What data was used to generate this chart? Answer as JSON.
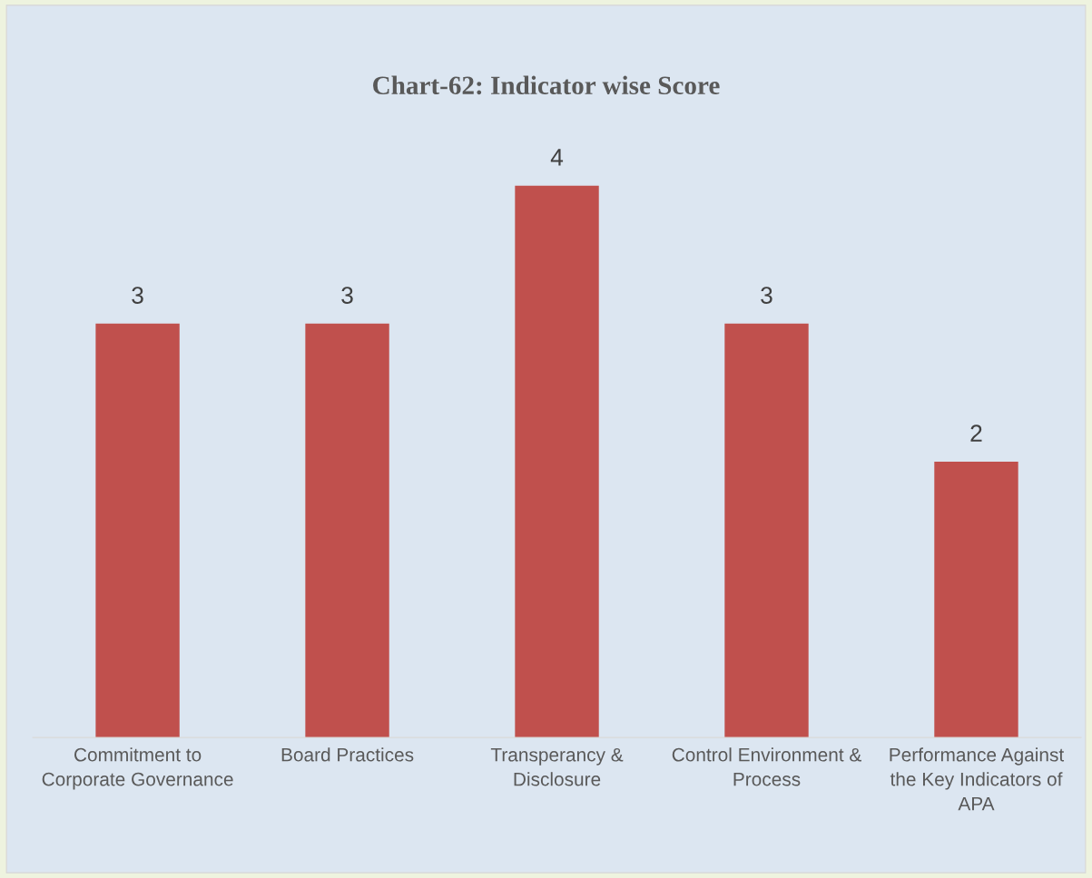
{
  "chart_data": {
    "type": "bar",
    "title": "Chart-62: Indicator wise Score",
    "categories": [
      "Commitment to Corporate Governance",
      "Board Practices",
      "Transperancy & Disclosure",
      "Control Environment & Process",
      "Performance Against the Key Indicators of APA"
    ],
    "values": [
      3,
      3,
      4,
      3,
      2
    ],
    "color": "#c0504d",
    "data_labels": true
  }
}
